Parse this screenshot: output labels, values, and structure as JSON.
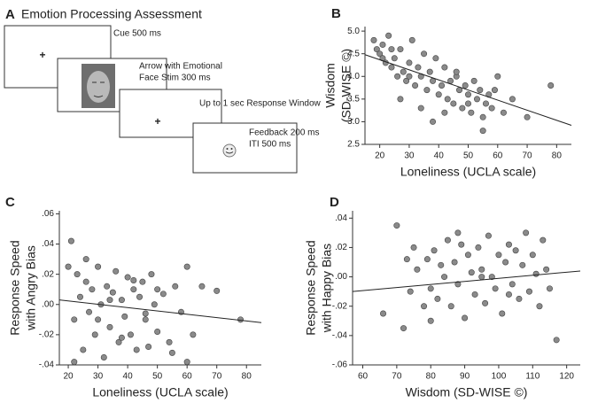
{
  "diagram": {
    "panel": "A",
    "title": "Emotion Processing Assessment",
    "fixation": "+",
    "steps": [
      [
        "Cue 500 ms"
      ],
      [
        "Arrow with Emotional",
        "Face Stim 300 ms"
      ],
      [
        "Up to 1 sec Response Window"
      ],
      [
        "Feedback 200 ms",
        "ITI 500 ms"
      ]
    ]
  },
  "chart_data": [
    {
      "type": "scatter",
      "panel": "B",
      "xlabel": "Loneliness (UCLA scale)",
      "ylabel": [
        "Wisdom",
        "(SD-WISE ©)"
      ],
      "color": "#8a8a8a",
      "xlim": [
        15,
        85
      ],
      "ylim": [
        2.5,
        5.1
      ],
      "xticks": [
        20,
        30,
        40,
        50,
        60,
        70,
        80
      ],
      "yticks": [
        {
          "value": 2.5,
          "label": "2.5"
        },
        {
          "value": 3,
          "label": "3.0"
        },
        {
          "value": 3.5,
          "label": "3.5"
        },
        {
          "value": 4,
          "label": "4.0"
        },
        {
          "value": 4.5,
          "label": "4.5"
        },
        {
          "value": 5,
          "label": "5.0"
        }
      ],
      "x": [
        18,
        19,
        20,
        21,
        22,
        23,
        24,
        25,
        26,
        27,
        28,
        29,
        30,
        31,
        32,
        33,
        34,
        35,
        36,
        37,
        38,
        39,
        40,
        41,
        42,
        43,
        44,
        45,
        46,
        47,
        48,
        49,
        50,
        51,
        52,
        53,
        54,
        55,
        56,
        57,
        58,
        60,
        62,
        65,
        70,
        78,
        21,
        24,
        27,
        30,
        34,
        38,
        42,
        46,
        50,
        55,
        59
      ],
      "y": [
        4.8,
        4.6,
        4.5,
        4.7,
        4.3,
        4.9,
        4.2,
        4.4,
        4.0,
        4.6,
        4.1,
        3.9,
        4.3,
        4.8,
        3.8,
        4.2,
        4.0,
        4.5,
        3.7,
        4.1,
        3.9,
        4.4,
        3.6,
        3.8,
        4.2,
        3.5,
        3.9,
        3.4,
        4.0,
        3.7,
        3.3,
        3.8,
        3.6,
        3.2,
        3.9,
        3.5,
        3.7,
        3.1,
        3.4,
        3.6,
        3.3,
        4.0,
        3.2,
        3.5,
        3.1,
        3.8,
        4.4,
        4.6,
        3.5,
        4.0,
        3.3,
        3.0,
        3.2,
        4.1,
        3.4,
        2.8,
        3.7
      ],
      "trendline": {
        "x": [
          15,
          85
        ],
        "y": [
          4.48,
          2.92
        ]
      }
    },
    {
      "type": "scatter",
      "panel": "C",
      "xlabel": "Loneliness (UCLA scale)",
      "ylabel": [
        "Response Speed",
        "with Angry Bias"
      ],
      "color": "#8a8a8a",
      "xlim": [
        17,
        85
      ],
      "ylim": [
        -0.04,
        0.062
      ],
      "xticks": [
        20,
        30,
        40,
        50,
        60,
        70,
        80
      ],
      "yticks": [
        {
          "value": -0.04,
          "label": "-.04"
        },
        {
          "value": -0.02,
          "label": "-.02"
        },
        {
          "value": 0,
          "label": ".00"
        },
        {
          "value": 0.02,
          "label": ".02"
        },
        {
          "value": 0.04,
          "label": ".04"
        },
        {
          "value": 0.06,
          "label": ".06"
        }
      ],
      "x": [
        20,
        21,
        22,
        23,
        24,
        25,
        26,
        27,
        28,
        29,
        30,
        31,
        32,
        33,
        34,
        35,
        36,
        37,
        38,
        39,
        40,
        41,
        42,
        43,
        44,
        45,
        46,
        47,
        48,
        49,
        50,
        52,
        54,
        56,
        58,
        60,
        62,
        65,
        70,
        78,
        22,
        26,
        30,
        34,
        38,
        42,
        46,
        50,
        55,
        60
      ],
      "y": [
        0.025,
        0.042,
        -0.01,
        0.02,
        0.005,
        -0.03,
        0.015,
        -0.005,
        0.01,
        -0.02,
        0.025,
        0.0,
        -0.035,
        0.012,
        -0.015,
        0.008,
        0.022,
        -0.025,
        0.003,
        -0.008,
        0.018,
        -0.02,
        0.01,
        -0.03,
        0.005,
        0.015,
        -0.01,
        -0.028,
        0.02,
        0.0,
        -0.018,
        0.007,
        -0.025,
        0.012,
        -0.005,
        0.025,
        -0.02,
        0.012,
        0.009,
        -0.01,
        -0.038,
        0.03,
        -0.01,
        0.003,
        -0.022,
        0.016,
        -0.006,
        0.01,
        -0.032,
        -0.038
      ],
      "trendline": {
        "x": [
          17,
          85
        ],
        "y": [
          0.003,
          -0.012
        ]
      }
    },
    {
      "type": "scatter",
      "panel": "D",
      "xlabel": "Wisdom (SD-WISE ©)",
      "ylabel": [
        "Response Speed",
        "with Happy Bias"
      ],
      "color": "#8a8a8a",
      "xlim": [
        57,
        124
      ],
      "ylim": [
        -0.06,
        0.045
      ],
      "xticks": [
        60,
        70,
        80,
        90,
        100,
        110,
        120
      ],
      "yticks": [
        {
          "value": -0.06,
          "label": "-.06"
        },
        {
          "value": -0.04,
          "label": "-.04"
        },
        {
          "value": -0.02,
          "label": "-.02"
        },
        {
          "value": 0,
          "label": ".00"
        },
        {
          "value": 0.02,
          "label": ".02"
        },
        {
          "value": 0.04,
          "label": ".04"
        }
      ],
      "x": [
        66,
        70,
        72,
        74,
        75,
        76,
        78,
        79,
        80,
        81,
        82,
        83,
        84,
        85,
        86,
        87,
        88,
        89,
        90,
        91,
        92,
        93,
        94,
        95,
        96,
        97,
        98,
        99,
        100,
        101,
        102,
        103,
        104,
        105,
        106,
        107,
        108,
        109,
        110,
        111,
        112,
        113,
        114,
        115,
        117,
        73,
        80,
        88,
        95,
        103
      ],
      "y": [
        -0.025,
        0.035,
        -0.035,
        -0.01,
        0.02,
        0.005,
        -0.02,
        0.012,
        -0.008,
        0.018,
        -0.015,
        0.008,
        0.0,
        0.025,
        -0.02,
        0.01,
        -0.005,
        0.022,
        -0.028,
        0.015,
        0.003,
        -0.012,
        0.02,
        0.005,
        -0.018,
        0.028,
        0.0,
        -0.008,
        0.015,
        -0.025,
        0.01,
        0.022,
        -0.005,
        0.018,
        -0.015,
        0.008,
        0.03,
        -0.01,
        0.015,
        0.002,
        -0.02,
        0.025,
        0.005,
        -0.008,
        -0.043,
        0.012,
        -0.03,
        0.03,
        0.0,
        -0.012
      ],
      "trendline": {
        "x": [
          57,
          124
        ],
        "y": [
          -0.01,
          0.004
        ]
      }
    }
  ]
}
